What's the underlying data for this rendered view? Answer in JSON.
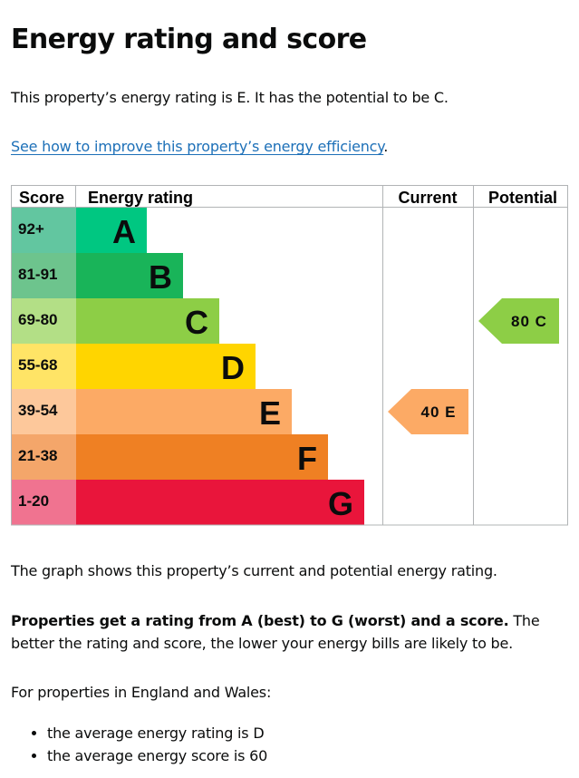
{
  "heading": "Energy rating and score",
  "intro": "This property’s energy rating is E. It has the potential to be C.",
  "link": {
    "text": "See how to improve this property’s energy efficiency",
    "suffix": "."
  },
  "chart_data": {
    "type": "bar",
    "columns": {
      "score": "Score",
      "rating": "Energy rating",
      "current": "Current",
      "potential": "Potential"
    },
    "bands": [
      {
        "band": "A",
        "range": "92+",
        "color": "#00c781",
        "score_color": "#62c6a0"
      },
      {
        "band": "B",
        "range": "81-91",
        "color": "#19b459",
        "score_color": "#6dc48d"
      },
      {
        "band": "C",
        "range": "69-80",
        "color": "#8dce46",
        "score_color": "#b3df86"
      },
      {
        "band": "D",
        "range": "55-68",
        "color": "#ffd500",
        "score_color": "#ffe466"
      },
      {
        "band": "E",
        "range": "39-54",
        "color": "#fcaa65",
        "score_color": "#fdc89b"
      },
      {
        "band": "F",
        "range": "21-38",
        "color": "#ef8023",
        "score_color": "#f4a66a"
      },
      {
        "band": "G",
        "range": "1-20",
        "color": "#e9153b",
        "score_color": "#f07390"
      }
    ],
    "current": {
      "score": 40,
      "band": "E",
      "label": "40 E",
      "color": "#fcaa65"
    },
    "potential": {
      "score": 80,
      "band": "C",
      "label": "80 C",
      "color": "#8dce46"
    }
  },
  "caption": "The graph shows this property’s current and potential energy rating.",
  "explain": {
    "bold": "Properties get a rating from A (best) to G (worst) and a score.",
    "rest": " The better the rating and score, the lower your energy bills are likely to be."
  },
  "region": "For properties in England and Wales:",
  "averages": [
    "the average energy rating is D",
    "the average energy score is 60"
  ]
}
